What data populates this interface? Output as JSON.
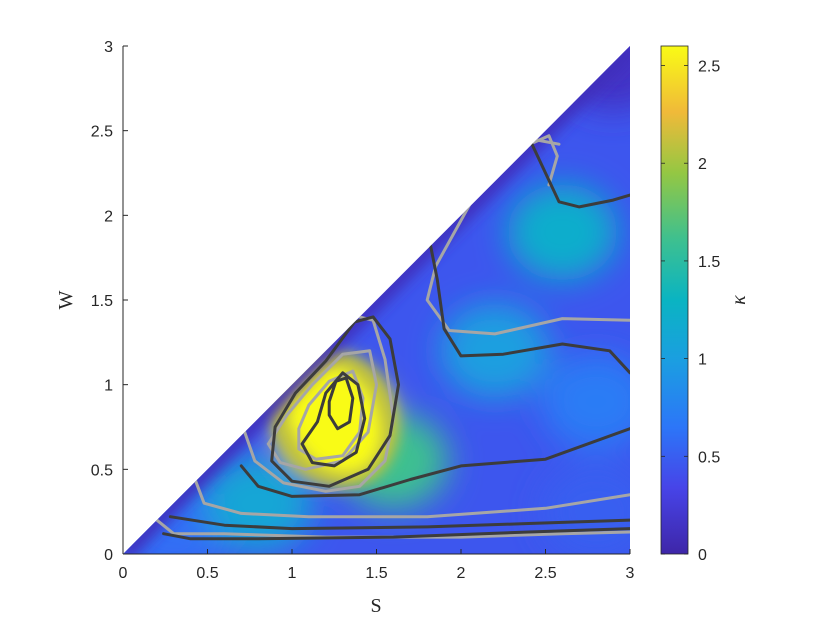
{
  "chart_data": {
    "type": "heatmap",
    "title": "",
    "xlabel": "S",
    "ylabel": "W",
    "colorbar_label": "κ",
    "xlim": [
      0,
      3
    ],
    "ylim": [
      0,
      3
    ],
    "clim": [
      0,
      2.6
    ],
    "domain": "W <= S (lower-right triangle)",
    "grid": false,
    "colormap": "parula",
    "x_ticks": [
      "0",
      "0.5",
      "1",
      "1.5",
      "2",
      "2.5",
      "3"
    ],
    "y_ticks": [
      "0",
      "0.5",
      "1",
      "1.5",
      "2",
      "2.5",
      "3"
    ],
    "colorbar_ticks": [
      "0",
      "0.5",
      "1",
      "1.5",
      "2",
      "2.5"
    ],
    "peak": {
      "S": 1.25,
      "W": 0.8,
      "value": 2.6
    },
    "field_samples": [
      {
        "S": 0.3,
        "W": 0.15,
        "value": 0.6
      },
      {
        "S": 0.8,
        "W": 0.3,
        "value": 1.1
      },
      {
        "S": 1.25,
        "W": 0.8,
        "value": 2.6
      },
      {
        "S": 1.6,
        "W": 0.55,
        "value": 1.6
      },
      {
        "S": 2.2,
        "W": 1.2,
        "value": 1.0
      },
      {
        "S": 2.6,
        "W": 1.9,
        "value": 1.2
      },
      {
        "S": 2.8,
        "W": 0.9,
        "value": 0.7
      },
      {
        "S": 2.8,
        "W": 0.25,
        "value": 0.5
      },
      {
        "S": 2.9,
        "W": 2.9,
        "value": 0.15
      }
    ],
    "contour_colors": {
      "dark": "#3c3c3c",
      "light": "#a6a6a6"
    },
    "contours_dark": [
      [
        [
          0.24,
          0.12
        ],
        [
          0.4,
          0.09
        ],
        [
          0.8,
          0.09
        ],
        [
          1.6,
          0.1
        ],
        [
          2.4,
          0.13
        ],
        [
          3.0,
          0.15
        ]
      ],
      [
        [
          0.28,
          0.22
        ],
        [
          0.6,
          0.17
        ],
        [
          1.0,
          0.15
        ],
        [
          1.8,
          0.16
        ],
        [
          2.4,
          0.18
        ],
        [
          3.0,
          0.2
        ]
      ],
      [
        [
          0.7,
          0.52
        ],
        [
          0.8,
          0.4
        ],
        [
          1.0,
          0.34
        ],
        [
          1.4,
          0.35
        ],
        [
          1.7,
          0.44
        ],
        [
          2.0,
          0.52
        ],
        [
          2.5,
          0.56
        ],
        [
          3.0,
          0.74
        ]
      ],
      [
        [
          1.37,
          1.37
        ],
        [
          1.48,
          1.4
        ],
        [
          1.58,
          1.27
        ],
        [
          1.63,
          1.0
        ],
        [
          1.58,
          0.7
        ],
        [
          1.45,
          0.5
        ],
        [
          1.22,
          0.4
        ],
        [
          1.0,
          0.43
        ],
        [
          0.88,
          0.55
        ],
        [
          0.9,
          0.75
        ],
        [
          1.02,
          0.95
        ],
        [
          1.2,
          1.14
        ],
        [
          1.37,
          1.37
        ]
      ],
      [
        [
          1.15,
          0.78
        ],
        [
          1.2,
          0.95
        ],
        [
          1.3,
          1.07
        ],
        [
          1.39,
          1.0
        ],
        [
          1.43,
          0.8
        ],
        [
          1.38,
          0.6
        ],
        [
          1.25,
          0.52
        ],
        [
          1.12,
          0.54
        ],
        [
          1.06,
          0.65
        ],
        [
          1.15,
          0.78
        ]
      ],
      [
        [
          1.22,
          0.9
        ],
        [
          1.26,
          1.02
        ],
        [
          1.32,
          1.04
        ],
        [
          1.36,
          0.92
        ],
        [
          1.34,
          0.78
        ],
        [
          1.27,
          0.74
        ],
        [
          1.22,
          0.82
        ],
        [
          1.22,
          0.9
        ]
      ],
      [
        [
          1.82,
          1.82
        ],
        [
          1.86,
          1.62
        ],
        [
          1.9,
          1.33
        ],
        [
          2.0,
          1.17
        ],
        [
          2.25,
          1.18
        ],
        [
          2.6,
          1.24
        ],
        [
          2.88,
          1.2
        ],
        [
          3.0,
          1.07
        ]
      ],
      [
        [
          2.42,
          2.42
        ],
        [
          2.5,
          2.25
        ],
        [
          2.58,
          2.08
        ],
        [
          2.7,
          2.05
        ],
        [
          2.9,
          2.09
        ],
        [
          3.0,
          2.12
        ]
      ]
    ],
    "contours_light": [
      [
        [
          0.2,
          0.2
        ],
        [
          0.3,
          0.12
        ],
        [
          0.6,
          0.12
        ],
        [
          1.2,
          0.1
        ],
        [
          2.0,
          0.1
        ],
        [
          2.6,
          0.12
        ],
        [
          3.0,
          0.13
        ]
      ],
      [
        [
          0.43,
          0.43
        ],
        [
          0.48,
          0.3
        ],
        [
          0.7,
          0.24
        ],
        [
          1.1,
          0.22
        ],
        [
          1.8,
          0.22
        ],
        [
          2.5,
          0.27
        ],
        [
          3.0,
          0.35
        ]
      ],
      [
        [
          0.72,
          0.72
        ],
        [
          0.78,
          0.55
        ],
        [
          0.95,
          0.42
        ],
        [
          1.2,
          0.37
        ],
        [
          1.4,
          0.4
        ],
        [
          1.55,
          0.55
        ],
        [
          1.6,
          0.8
        ],
        [
          1.55,
          1.15
        ],
        [
          1.48,
          1.38
        ],
        [
          1.4,
          1.4
        ]
      ],
      [
        [
          0.86,
          0.65
        ],
        [
          0.97,
          0.82
        ],
        [
          1.12,
          1.0
        ],
        [
          1.3,
          1.18
        ],
        [
          1.46,
          1.2
        ],
        [
          1.5,
          1.0
        ],
        [
          1.45,
          0.72
        ],
        [
          1.3,
          0.55
        ],
        [
          1.08,
          0.5
        ],
        [
          0.93,
          0.54
        ],
        [
          0.86,
          0.65
        ]
      ],
      [
        [
          1.04,
          0.74
        ],
        [
          1.1,
          0.88
        ],
        [
          1.22,
          1.02
        ],
        [
          1.36,
          1.08
        ],
        [
          1.42,
          0.92
        ],
        [
          1.4,
          0.72
        ],
        [
          1.3,
          0.58
        ],
        [
          1.14,
          0.56
        ],
        [
          1.04,
          0.62
        ],
        [
          1.04,
          0.74
        ]
      ],
      [
        [
          2.58,
          2.42
        ],
        [
          2.42,
          2.45
        ],
        [
          2.1,
          2.15
        ],
        [
          1.85,
          1.7
        ],
        [
          1.8,
          1.5
        ],
        [
          1.93,
          1.32
        ],
        [
          2.2,
          1.3
        ],
        [
          2.6,
          1.39
        ],
        [
          3.0,
          1.38
        ]
      ],
      [
        [
          2.43,
          2.43
        ],
        [
          2.52,
          2.47
        ],
        [
          2.57,
          2.35
        ],
        [
          2.52,
          2.18
        ]
      ]
    ]
  }
}
